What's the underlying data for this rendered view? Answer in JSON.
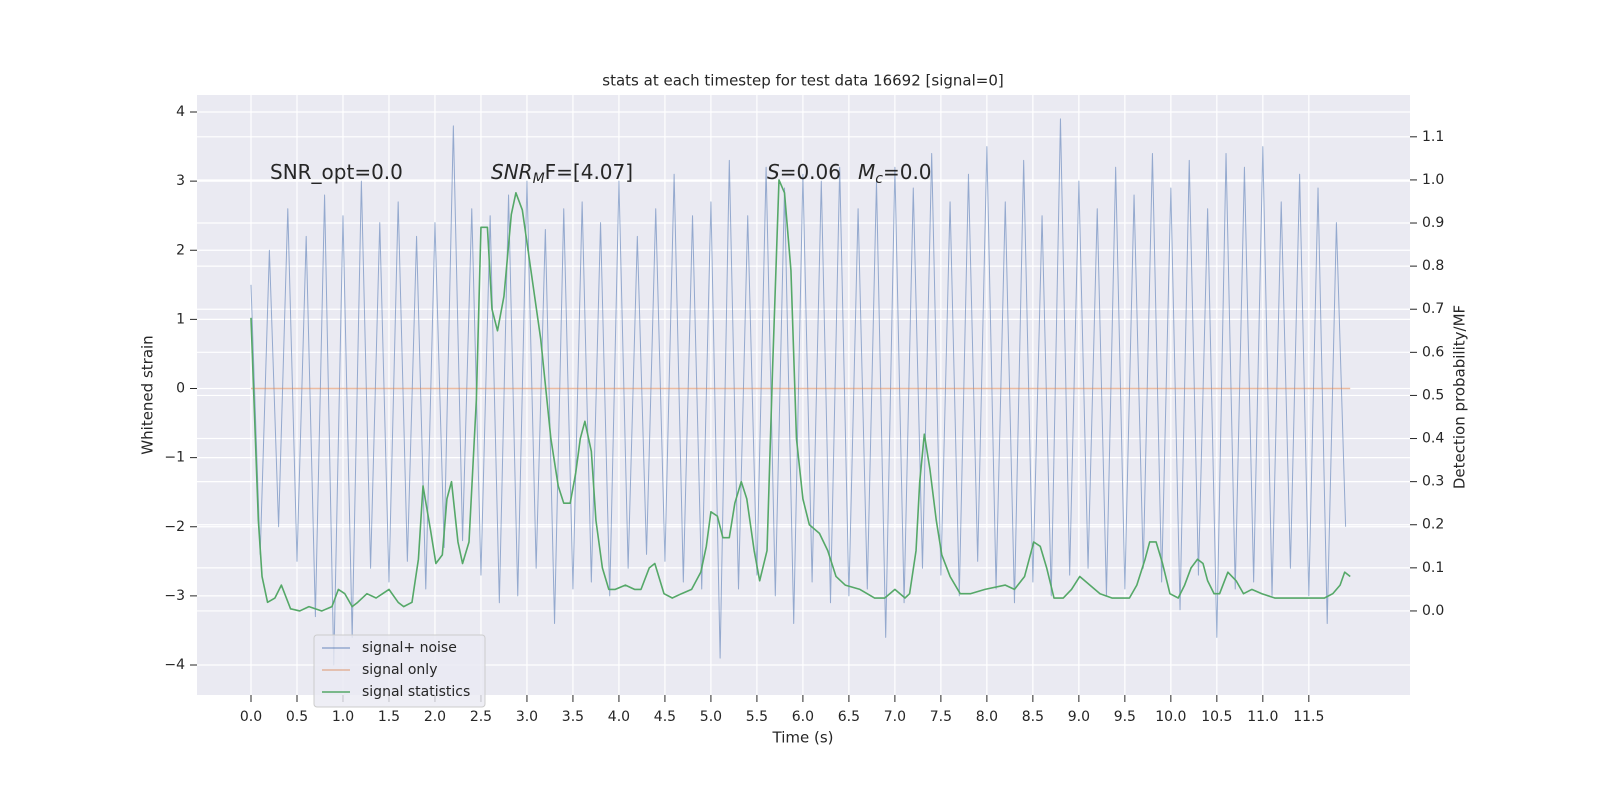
{
  "chart_data": {
    "type": "line",
    "title": "stats at each timestep for test data 16692 [signal=0]",
    "x_label": "Time (s)",
    "y_label": "Whitened strain",
    "y2_label": "Detection probability/MF",
    "annotations": [
      {
        "text": "SNR_opt=0.0"
      },
      {
        "main": "SNR",
        "sub": "M",
        "rest": "F=[4.07]"
      },
      {
        "main": "S",
        "rest": "=0.06"
      },
      {
        "main": "M",
        "sub": "c",
        "rest": "=0.0"
      }
    ],
    "xlim": [
      -0.587,
      12.6
    ],
    "ylim": [
      -4.434,
      4.246
    ],
    "y2lim": [
      -0.195,
      1.197
    ],
    "xticks": [
      {
        "value": 0,
        "label": "0.0"
      },
      0.5,
      {
        "value": 1,
        "label": "1.0"
      },
      1.5,
      {
        "value": 2,
        "label": "2.0"
      },
      2.5,
      {
        "value": 3,
        "label": "3.0"
      },
      3.5,
      {
        "value": 4,
        "label": "4.0"
      },
      4.5,
      {
        "value": 5,
        "label": "5.0"
      },
      5.5,
      {
        "value": 6,
        "label": "6.0"
      },
      6.5,
      {
        "value": 7,
        "label": "7.0"
      },
      7.5,
      {
        "value": 8,
        "label": "8.0"
      },
      8.5,
      {
        "value": 9,
        "label": "9.0"
      },
      9.5,
      {
        "value": 10,
        "label": "10.0"
      },
      10.5,
      {
        "value": 11,
        "label": "11.0"
      },
      11.5
    ],
    "yticks": [
      {
        "value": -4,
        "label": "−4"
      },
      {
        "value": -3,
        "label": "−3"
      },
      {
        "value": -2,
        "label": "−2"
      },
      {
        "value": -1,
        "label": "−1"
      },
      0,
      1,
      2,
      3,
      4
    ],
    "y2ticks": [
      {
        "value": 0,
        "label": "0.0"
      },
      0.1,
      0.2,
      0.3,
      0.4,
      0.5,
      0.6,
      0.7,
      0.8,
      0.9,
      {
        "value": 1,
        "label": "1.0"
      },
      1.1
    ],
    "grid": true,
    "legend": "lower left",
    "series": [
      {
        "name": "signal+ noise",
        "color": "#4c72b0",
        "x": [
          0,
          0.1,
          0.2,
          0.3,
          0.4,
          0.5,
          0.6,
          0.7,
          0.8,
          0.9,
          1,
          1.1,
          1.2,
          1.3,
          1.4,
          1.5,
          1.6,
          1.7,
          1.8,
          1.9,
          2,
          2.1,
          2.2,
          2.3,
          2.4,
          2.5,
          2.6,
          2.7,
          2.8,
          2.9,
          3,
          3.1,
          3.2,
          3.3,
          3.4,
          3.5,
          3.6,
          3.7,
          3.8,
          3.9,
          4,
          4.1,
          4.2,
          4.3,
          4.4,
          4.5,
          4.6,
          4.7,
          4.8,
          4.9,
          5,
          5.1,
          5.2,
          5.3,
          5.4,
          5.5,
          5.6,
          5.7,
          5.8,
          5.9,
          6,
          6.1,
          6.2,
          6.3,
          6.4,
          6.5,
          6.6,
          6.7,
          6.8,
          6.9,
          7,
          7.1,
          7.2,
          7.3,
          7.4,
          7.5,
          7.6,
          7.7,
          7.8,
          7.9,
          8,
          8.1,
          8.2,
          8.3,
          8.4,
          8.5,
          8.6,
          8.7,
          8.8,
          8.9,
          9,
          9.1,
          9.2,
          9.3,
          9.4,
          9.5,
          9.6,
          9.7,
          9.8,
          9.9,
          10,
          10.1,
          10.2,
          10.3,
          10.4,
          10.5,
          10.6,
          10.7,
          10.8,
          10.9,
          11,
          11.1,
          11.2,
          11.3,
          11.4,
          11.5,
          11.6,
          11.7,
          11.8,
          11.9
        ],
        "values": [
          1.5,
          -2.4,
          2.0,
          -2.0,
          2.6,
          -2.5,
          2.2,
          -3.3,
          2.8,
          -4.0,
          2.5,
          -3.6,
          3.0,
          -2.6,
          2.4,
          -2.8,
          2.7,
          -2.5,
          2.2,
          -2.9,
          2.4,
          -2.3,
          3.8,
          -2.2,
          2.6,
          -2.7,
          2.5,
          -3.1,
          2.8,
          -3.0,
          3.0,
          -2.6,
          2.3,
          -3.4,
          2.6,
          -2.9,
          2.7,
          -2.8,
          2.4,
          -3.0,
          3.0,
          -2.6,
          2.2,
          -2.4,
          2.6,
          -2.5,
          3.1,
          -2.8,
          2.5,
          -2.9,
          2.7,
          -3.9,
          3.3,
          -2.9,
          2.5,
          -2.7,
          3.2,
          -3.0,
          2.9,
          -3.4,
          3.1,
          -2.8,
          3.0,
          -3.1,
          3.2,
          -3.0,
          2.6,
          -2.9,
          3.0,
          -3.6,
          3.2,
          -3.1,
          2.9,
          -2.6,
          3.4,
          -2.7,
          2.7,
          -3.0,
          3.1,
          -2.5,
          3.5,
          -2.9,
          2.7,
          -3.1,
          3.3,
          -2.8,
          2.5,
          -3.0,
          3.9,
          -2.7,
          3.0,
          -2.6,
          2.6,
          -3.0,
          3.2,
          -2.9,
          2.8,
          -2.6,
          3.4,
          -2.8,
          2.9,
          -3.2,
          3.3,
          -2.7,
          2.6,
          -3.6,
          3.4,
          -2.9,
          3.2,
          -2.8,
          3.5,
          -3.0,
          2.7,
          -2.6,
          3.1,
          -3.0,
          2.9,
          -3.4,
          2.4,
          -2.0
        ]
      },
      {
        "name": "signal only",
        "color": "#dd8452",
        "x": [
          0,
          11.95
        ],
        "values": [
          0,
          0
        ]
      },
      {
        "name": "signal statistics",
        "color": "#55a868",
        "axis": "y2",
        "x": [
          0,
          0.08,
          0.12,
          0.18,
          0.26,
          0.33,
          0.43,
          0.53,
          0.63,
          0.77,
          0.88,
          0.95,
          1.02,
          1.1,
          1.16,
          1.26,
          1.36,
          1.5,
          1.6,
          1.66,
          1.75,
          1.82,
          1.87,
          1.95,
          2.01,
          2.08,
          2.13,
          2.18,
          2.25,
          2.3,
          2.37,
          2.45,
          2.5,
          2.57,
          2.62,
          2.68,
          2.75,
          2.83,
          2.88,
          2.95,
          3.03,
          3.15,
          3.26,
          3.34,
          3.4,
          3.47,
          3.53,
          3.58,
          3.63,
          3.7,
          3.75,
          3.82,
          3.89,
          3.96,
          4.07,
          4.17,
          4.24,
          4.33,
          4.39,
          4.49,
          4.58,
          4.68,
          4.79,
          4.89,
          4.95,
          5.0,
          5.07,
          5.13,
          5.2,
          5.26,
          5.33,
          5.39,
          5.47,
          5.53,
          5.61,
          5.67,
          5.74,
          5.8,
          5.87,
          5.93,
          6.0,
          6.07,
          6.18,
          6.27,
          6.36,
          6.46,
          6.62,
          6.78,
          6.89,
          7.0,
          7.11,
          7.16,
          7.23,
          7.27,
          7.32,
          7.38,
          7.45,
          7.51,
          7.6,
          7.71,
          7.82,
          7.98,
          8.2,
          8.3,
          8.41,
          8.51,
          8.58,
          8.65,
          8.73,
          8.83,
          8.92,
          9.01,
          9.12,
          9.23,
          9.36,
          9.47,
          9.55,
          9.63,
          9.72,
          9.77,
          9.84,
          9.91,
          9.99,
          10.08,
          10.15,
          10.22,
          10.29,
          10.35,
          10.4,
          10.47,
          10.53,
          10.62,
          10.71,
          10.79,
          10.88,
          10.99,
          11.13,
          11.29,
          11.51,
          11.67,
          11.76,
          11.84,
          11.89,
          11.95
        ],
        "values": [
          0.68,
          0.21,
          0.08,
          0.02,
          0.03,
          0.06,
          0.005,
          0.0,
          0.01,
          0.0,
          0.01,
          0.05,
          0.04,
          0.01,
          0.02,
          0.04,
          0.03,
          0.05,
          0.02,
          0.01,
          0.02,
          0.12,
          0.29,
          0.19,
          0.11,
          0.13,
          0.26,
          0.3,
          0.16,
          0.11,
          0.16,
          0.49,
          0.89,
          0.89,
          0.7,
          0.65,
          0.73,
          0.92,
          0.97,
          0.93,
          0.81,
          0.63,
          0.4,
          0.29,
          0.25,
          0.25,
          0.32,
          0.4,
          0.44,
          0.37,
          0.21,
          0.1,
          0.05,
          0.05,
          0.06,
          0.05,
          0.05,
          0.1,
          0.11,
          0.04,
          0.03,
          0.04,
          0.05,
          0.09,
          0.15,
          0.23,
          0.22,
          0.17,
          0.17,
          0.25,
          0.3,
          0.26,
          0.14,
          0.07,
          0.14,
          0.56,
          1.0,
          0.97,
          0.79,
          0.4,
          0.26,
          0.2,
          0.18,
          0.14,
          0.08,
          0.06,
          0.05,
          0.03,
          0.03,
          0.05,
          0.03,
          0.04,
          0.14,
          0.3,
          0.41,
          0.33,
          0.21,
          0.13,
          0.08,
          0.04,
          0.04,
          0.05,
          0.06,
          0.05,
          0.08,
          0.16,
          0.15,
          0.1,
          0.03,
          0.03,
          0.05,
          0.08,
          0.06,
          0.04,
          0.03,
          0.03,
          0.03,
          0.06,
          0.12,
          0.16,
          0.16,
          0.11,
          0.04,
          0.03,
          0.06,
          0.1,
          0.12,
          0.11,
          0.07,
          0.04,
          0.04,
          0.09,
          0.07,
          0.04,
          0.05,
          0.04,
          0.03,
          0.03,
          0.03,
          0.03,
          0.04,
          0.06,
          0.09,
          0.08
        ]
      }
    ]
  }
}
